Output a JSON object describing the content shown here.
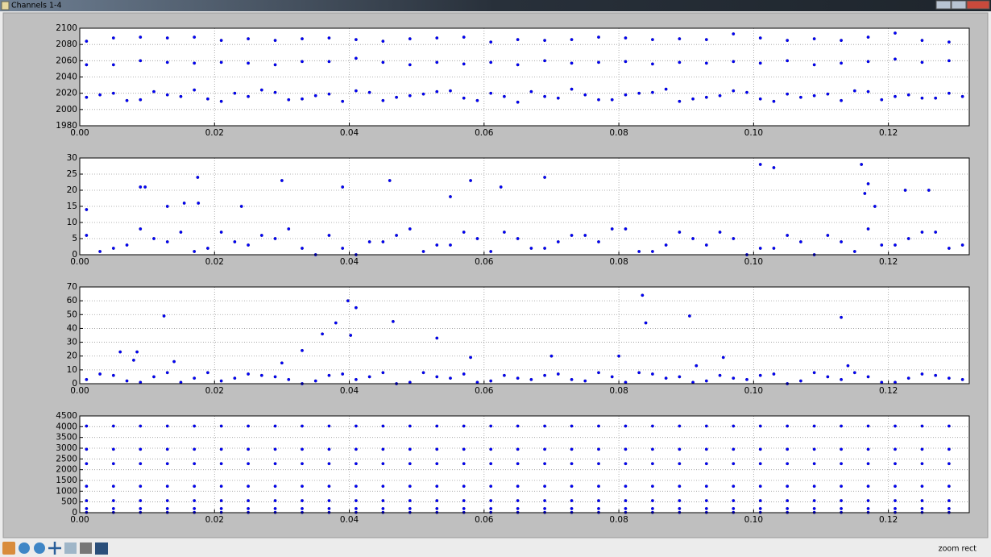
{
  "window": {
    "title": "Channels 1-4",
    "status": "zoom rect"
  },
  "chart_data": [
    {
      "type": "scatter",
      "xlim": [
        0,
        0.132
      ],
      "ylim": [
        1980,
        2100
      ],
      "xticks": [
        {
          "value": 0,
          "label": "0.00"
        },
        {
          "value": 0.02,
          "label": "0.02"
        },
        {
          "value": 0.04,
          "label": "0.04"
        },
        {
          "value": 0.06,
          "label": "0.06"
        },
        {
          "value": 0.08,
          "label": "0.08"
        },
        {
          "value": 0.1,
          "label": "0.10"
        },
        {
          "value": 0.12,
          "label": "0.12"
        }
      ],
      "yticks": [
        1980,
        2000,
        2020,
        2040,
        2060,
        2080,
        2100
      ],
      "grid": true,
      "x": [
        0.001,
        0.005,
        0.009,
        0.013,
        0.017,
        0.021,
        0.025,
        0.029,
        0.033,
        0.037,
        0.041,
        0.045,
        0.049,
        0.053,
        0.057,
        0.061,
        0.065,
        0.069,
        0.073,
        0.077,
        0.081,
        0.085,
        0.089,
        0.093,
        0.097,
        0.101,
        0.105,
        0.109,
        0.113,
        0.117,
        0.121,
        0.125,
        0.129
      ],
      "series": [
        {
          "color": "#0000ff",
          "values": [
            2084,
            2088,
            2089,
            2088,
            2089,
            2085,
            2087,
            2085,
            2087,
            2088,
            2086,
            2084,
            2087,
            2088,
            2089,
            2083,
            2086,
            2085,
            2086,
            2089,
            2088,
            2086,
            2087,
            2086,
            2093,
            2088,
            2085,
            2087,
            2085,
            2089,
            2094,
            2085,
            2083
          ]
        },
        {
          "color": "#0000ff",
          "values": [
            2055,
            2055,
            2060,
            2058,
            2057,
            2058,
            2057,
            2055,
            2059,
            2059,
            2063,
            2058,
            2055,
            2058,
            2056,
            2058,
            2055,
            2060,
            2057,
            2058,
            2059,
            2056,
            2058,
            2057,
            2059,
            2057,
            2060,
            2055,
            2057,
            2059,
            2062,
            2058,
            2060
          ]
        },
        {
          "color": "#0000ff",
          "values": [
            2015,
            2020,
            2012,
            2018,
            2024,
            2010,
            2016,
            2021,
            2013,
            2019,
            2023,
            2011,
            2017,
            2022,
            2014,
            2020,
            2009,
            2016,
            2025,
            2012,
            2018,
            2021,
            2010,
            2015,
            2023,
            2013,
            2019,
            2017,
            2011,
            2022,
            2016,
            2014,
            2020
          ]
        },
        {
          "color": "#0000ff",
          "x": [
            0.003,
            0.007,
            0.011,
            0.015,
            0.019,
            0.023,
            0.027,
            0.031,
            0.035,
            0.039,
            0.043,
            0.047,
            0.051,
            0.055,
            0.059,
            0.063,
            0.067,
            0.071,
            0.075,
            0.079,
            0.083,
            0.087,
            0.091,
            0.095,
            0.099,
            0.103,
            0.107,
            0.111,
            0.115,
            0.119,
            0.123,
            0.127,
            0.131
          ],
          "values": [
            2018,
            2011,
            2022,
            2016,
            2013,
            2020,
            2024,
            2012,
            2017,
            2010,
            2021,
            2015,
            2019,
            2023,
            2011,
            2016,
            2022,
            2014,
            2018,
            2012,
            2020,
            2025,
            2013,
            2017,
            2021,
            2010,
            2015,
            2019,
            2023,
            2012,
            2018,
            2014,
            2016
          ]
        }
      ]
    },
    {
      "type": "scatter",
      "xlim": [
        0,
        0.132
      ],
      "ylim": [
        0,
        30
      ],
      "xticks": [
        {
          "value": 0,
          "label": "0.00"
        },
        {
          "value": 0.02,
          "label": "0.02"
        },
        {
          "value": 0.04,
          "label": "0.04"
        },
        {
          "value": 0.06,
          "label": "0.06"
        },
        {
          "value": 0.08,
          "label": "0.08"
        },
        {
          "value": 0.1,
          "label": "0.10"
        },
        {
          "value": 0.12,
          "label": "0.12"
        }
      ],
      "yticks": [
        0,
        5,
        10,
        15,
        20,
        25,
        30
      ],
      "grid": true,
      "x": [
        0.001,
        0.005,
        0.009,
        0.013,
        0.017,
        0.021,
        0.025,
        0.029,
        0.033,
        0.037,
        0.041,
        0.045,
        0.049,
        0.053,
        0.057,
        0.061,
        0.065,
        0.069,
        0.073,
        0.077,
        0.081,
        0.085,
        0.089,
        0.093,
        0.097,
        0.101,
        0.105,
        0.109,
        0.113,
        0.117,
        0.121,
        0.125,
        0.129
      ],
      "series": [
        {
          "color": "#0000ff",
          "values": [
            6,
            2,
            8,
            4,
            1,
            7,
            3,
            5,
            2,
            6,
            0,
            4,
            8,
            3,
            7,
            1,
            5,
            2,
            6,
            4,
            8,
            1,
            7,
            3,
            5,
            2,
            6,
            0,
            4,
            8,
            3,
            7,
            2
          ]
        },
        {
          "color": "#0000ff",
          "x": [
            0.003,
            0.007,
            0.011,
            0.015,
            0.019,
            0.023,
            0.027,
            0.031,
            0.035,
            0.039,
            0.043,
            0.047,
            0.051,
            0.055,
            0.059,
            0.063,
            0.067,
            0.071,
            0.075,
            0.079,
            0.083,
            0.087,
            0.091,
            0.095,
            0.099,
            0.103,
            0.107,
            0.111,
            0.115,
            0.119,
            0.123,
            0.127,
            0.131
          ],
          "values": [
            1,
            3,
            5,
            7,
            2,
            4,
            6,
            8,
            0,
            2,
            4,
            6,
            1,
            3,
            5,
            7,
            2,
            4,
            6,
            8,
            1,
            3,
            5,
            7,
            0,
            2,
            4,
            6,
            1,
            3,
            5,
            7,
            3
          ]
        },
        {
          "color": "#0000ff",
          "x": [
            0.001,
            0.009,
            0.0097,
            0.013,
            0.0155,
            0.0175,
            0.0176,
            0.024,
            0.03,
            0.039,
            0.046,
            0.055,
            0.058,
            0.0625,
            0.069,
            0.101,
            0.103,
            0.116,
            0.1165,
            0.117,
            0.118,
            0.1225,
            0.126
          ],
          "values": [
            14,
            21,
            21,
            15,
            16,
            24,
            16,
            15,
            23,
            21,
            23,
            18,
            23,
            21,
            24,
            28,
            27,
            28,
            19,
            22,
            15,
            20,
            20
          ]
        }
      ]
    },
    {
      "type": "scatter",
      "xlim": [
        0,
        0.132
      ],
      "ylim": [
        0,
        70
      ],
      "xticks": [
        {
          "value": 0,
          "label": "0.00"
        },
        {
          "value": 0.02,
          "label": "0.02"
        },
        {
          "value": 0.04,
          "label": "0.04"
        },
        {
          "value": 0.06,
          "label": "0.06"
        },
        {
          "value": 0.08,
          "label": "0.08"
        },
        {
          "value": 0.1,
          "label": "0.10"
        },
        {
          "value": 0.12,
          "label": "0.12"
        }
      ],
      "yticks": [
        0,
        10,
        20,
        30,
        40,
        50,
        60,
        70
      ],
      "grid": true,
      "x": [
        0.001,
        0.005,
        0.009,
        0.013,
        0.017,
        0.021,
        0.025,
        0.029,
        0.033,
        0.037,
        0.041,
        0.045,
        0.049,
        0.053,
        0.057,
        0.061,
        0.065,
        0.069,
        0.073,
        0.077,
        0.081,
        0.085,
        0.089,
        0.093,
        0.097,
        0.101,
        0.105,
        0.109,
        0.113,
        0.117,
        0.121,
        0.125,
        0.129
      ],
      "series": [
        {
          "color": "#0000ff",
          "values": [
            3,
            6,
            1,
            8,
            4,
            2,
            7,
            5,
            0,
            6,
            3,
            8,
            1,
            5,
            7,
            2,
            4,
            6,
            3,
            8,
            1,
            7,
            5,
            2,
            4,
            6,
            0,
            8,
            3,
            5,
            1,
            7,
            4
          ]
        },
        {
          "color": "#0000ff",
          "x": [
            0.003,
            0.007,
            0.011,
            0.015,
            0.019,
            0.023,
            0.027,
            0.031,
            0.035,
            0.039,
            0.043,
            0.047,
            0.051,
            0.055,
            0.059,
            0.063,
            0.067,
            0.071,
            0.075,
            0.079,
            0.083,
            0.087,
            0.091,
            0.095,
            0.099,
            0.103,
            0.107,
            0.111,
            0.115,
            0.119,
            0.123,
            0.127,
            0.131
          ],
          "values": [
            7,
            2,
            5,
            1,
            8,
            4,
            6,
            3,
            2,
            7,
            5,
            0,
            8,
            4,
            1,
            6,
            3,
            7,
            2,
            5,
            8,
            4,
            1,
            6,
            3,
            7,
            2,
            5,
            8,
            1,
            4,
            6,
            3
          ]
        },
        {
          "color": "#0000ff",
          "x": [
            0.006,
            0.008,
            0.0085,
            0.0125,
            0.014,
            0.03,
            0.033,
            0.036,
            0.038,
            0.0398,
            0.0402,
            0.041,
            0.0465,
            0.053,
            0.058,
            0.07,
            0.08,
            0.0835,
            0.084,
            0.0905,
            0.0955,
            0.113,
            0.114,
            0.0915
          ],
          "values": [
            23,
            17,
            23,
            49,
            16,
            15,
            24,
            36,
            44,
            60,
            35,
            55,
            45,
            33,
            19,
            20,
            20,
            64,
            44,
            49,
            19,
            48,
            13,
            13
          ]
        }
      ]
    },
    {
      "type": "scatter",
      "xlim": [
        0,
        0.132
      ],
      "ylim": [
        0,
        4500
      ],
      "xticks": [
        {
          "value": 0,
          "label": "0.00"
        },
        {
          "value": 0.02,
          "label": "0.02"
        },
        {
          "value": 0.04,
          "label": "0.04"
        },
        {
          "value": 0.06,
          "label": "0.06"
        },
        {
          "value": 0.08,
          "label": "0.08"
        },
        {
          "value": 0.1,
          "label": "0.10"
        },
        {
          "value": 0.12,
          "label": "0.12"
        }
      ],
      "yticks": [
        0,
        500,
        1000,
        1500,
        2000,
        2500,
        3000,
        3500,
        4000,
        4500
      ],
      "grid": true,
      "x": [
        0.001,
        0.005,
        0.009,
        0.013,
        0.017,
        0.021,
        0.025,
        0.029,
        0.033,
        0.037,
        0.041,
        0.045,
        0.049,
        0.053,
        0.057,
        0.061,
        0.065,
        0.069,
        0.073,
        0.077,
        0.081,
        0.085,
        0.089,
        0.093,
        0.097,
        0.101,
        0.105,
        0.109,
        0.113,
        0.117,
        0.121,
        0.125,
        0.129
      ],
      "series": [
        {
          "color": "#0000ff",
          "values": [
            4030,
            4030,
            4030,
            4030,
            4030,
            4030,
            4030,
            4030,
            4030,
            4030,
            4030,
            4030,
            4030,
            4030,
            4030,
            4030,
            4030,
            4030,
            4030,
            4030,
            4030,
            4030,
            4030,
            4030,
            4030,
            4030,
            4030,
            4030,
            4030,
            4030,
            4030,
            4030,
            4030
          ]
        },
        {
          "color": "#0000ff",
          "values": [
            2950,
            2950,
            2950,
            2950,
            2950,
            2950,
            2950,
            2950,
            2950,
            2950,
            2950,
            2950,
            2950,
            2950,
            2950,
            2950,
            2950,
            2950,
            2950,
            2950,
            2950,
            2950,
            2950,
            2950,
            2950,
            2950,
            2950,
            2950,
            2950,
            2950,
            2950,
            2950,
            2950
          ]
        },
        {
          "color": "#0000ff",
          "values": [
            2280,
            2280,
            2280,
            2280,
            2280,
            2280,
            2280,
            2280,
            2280,
            2280,
            2280,
            2280,
            2280,
            2280,
            2280,
            2280,
            2280,
            2280,
            2280,
            2280,
            2280,
            2280,
            2280,
            2280,
            2280,
            2280,
            2280,
            2280,
            2280,
            2280,
            2280,
            2280,
            2280
          ]
        },
        {
          "color": "#0000ff",
          "values": [
            1230,
            1230,
            1230,
            1230,
            1230,
            1230,
            1230,
            1230,
            1230,
            1230,
            1230,
            1230,
            1230,
            1230,
            1230,
            1230,
            1230,
            1230,
            1230,
            1230,
            1230,
            1230,
            1230,
            1230,
            1230,
            1230,
            1230,
            1230,
            1230,
            1230,
            1230,
            1230,
            1230
          ]
        },
        {
          "color": "#0000ff",
          "values": [
            560,
            560,
            560,
            560,
            560,
            560,
            560,
            560,
            560,
            560,
            560,
            560,
            560,
            560,
            560,
            560,
            560,
            560,
            560,
            560,
            560,
            560,
            560,
            560,
            560,
            560,
            560,
            560,
            560,
            560,
            560,
            560,
            560
          ]
        },
        {
          "color": "#0000ff",
          "values": [
            190,
            190,
            190,
            190,
            190,
            190,
            190,
            190,
            190,
            190,
            190,
            190,
            190,
            190,
            190,
            190,
            190,
            190,
            190,
            190,
            190,
            190,
            190,
            190,
            190,
            190,
            190,
            190,
            190,
            190,
            190,
            190,
            190
          ]
        },
        {
          "color": "#0000ff",
          "values": [
            10,
            10,
            10,
            10,
            10,
            10,
            10,
            10,
            10,
            10,
            10,
            10,
            10,
            10,
            10,
            10,
            10,
            10,
            10,
            10,
            10,
            10,
            10,
            10,
            10,
            10,
            10,
            10,
            10,
            10,
            10,
            10,
            10
          ]
        }
      ]
    }
  ]
}
